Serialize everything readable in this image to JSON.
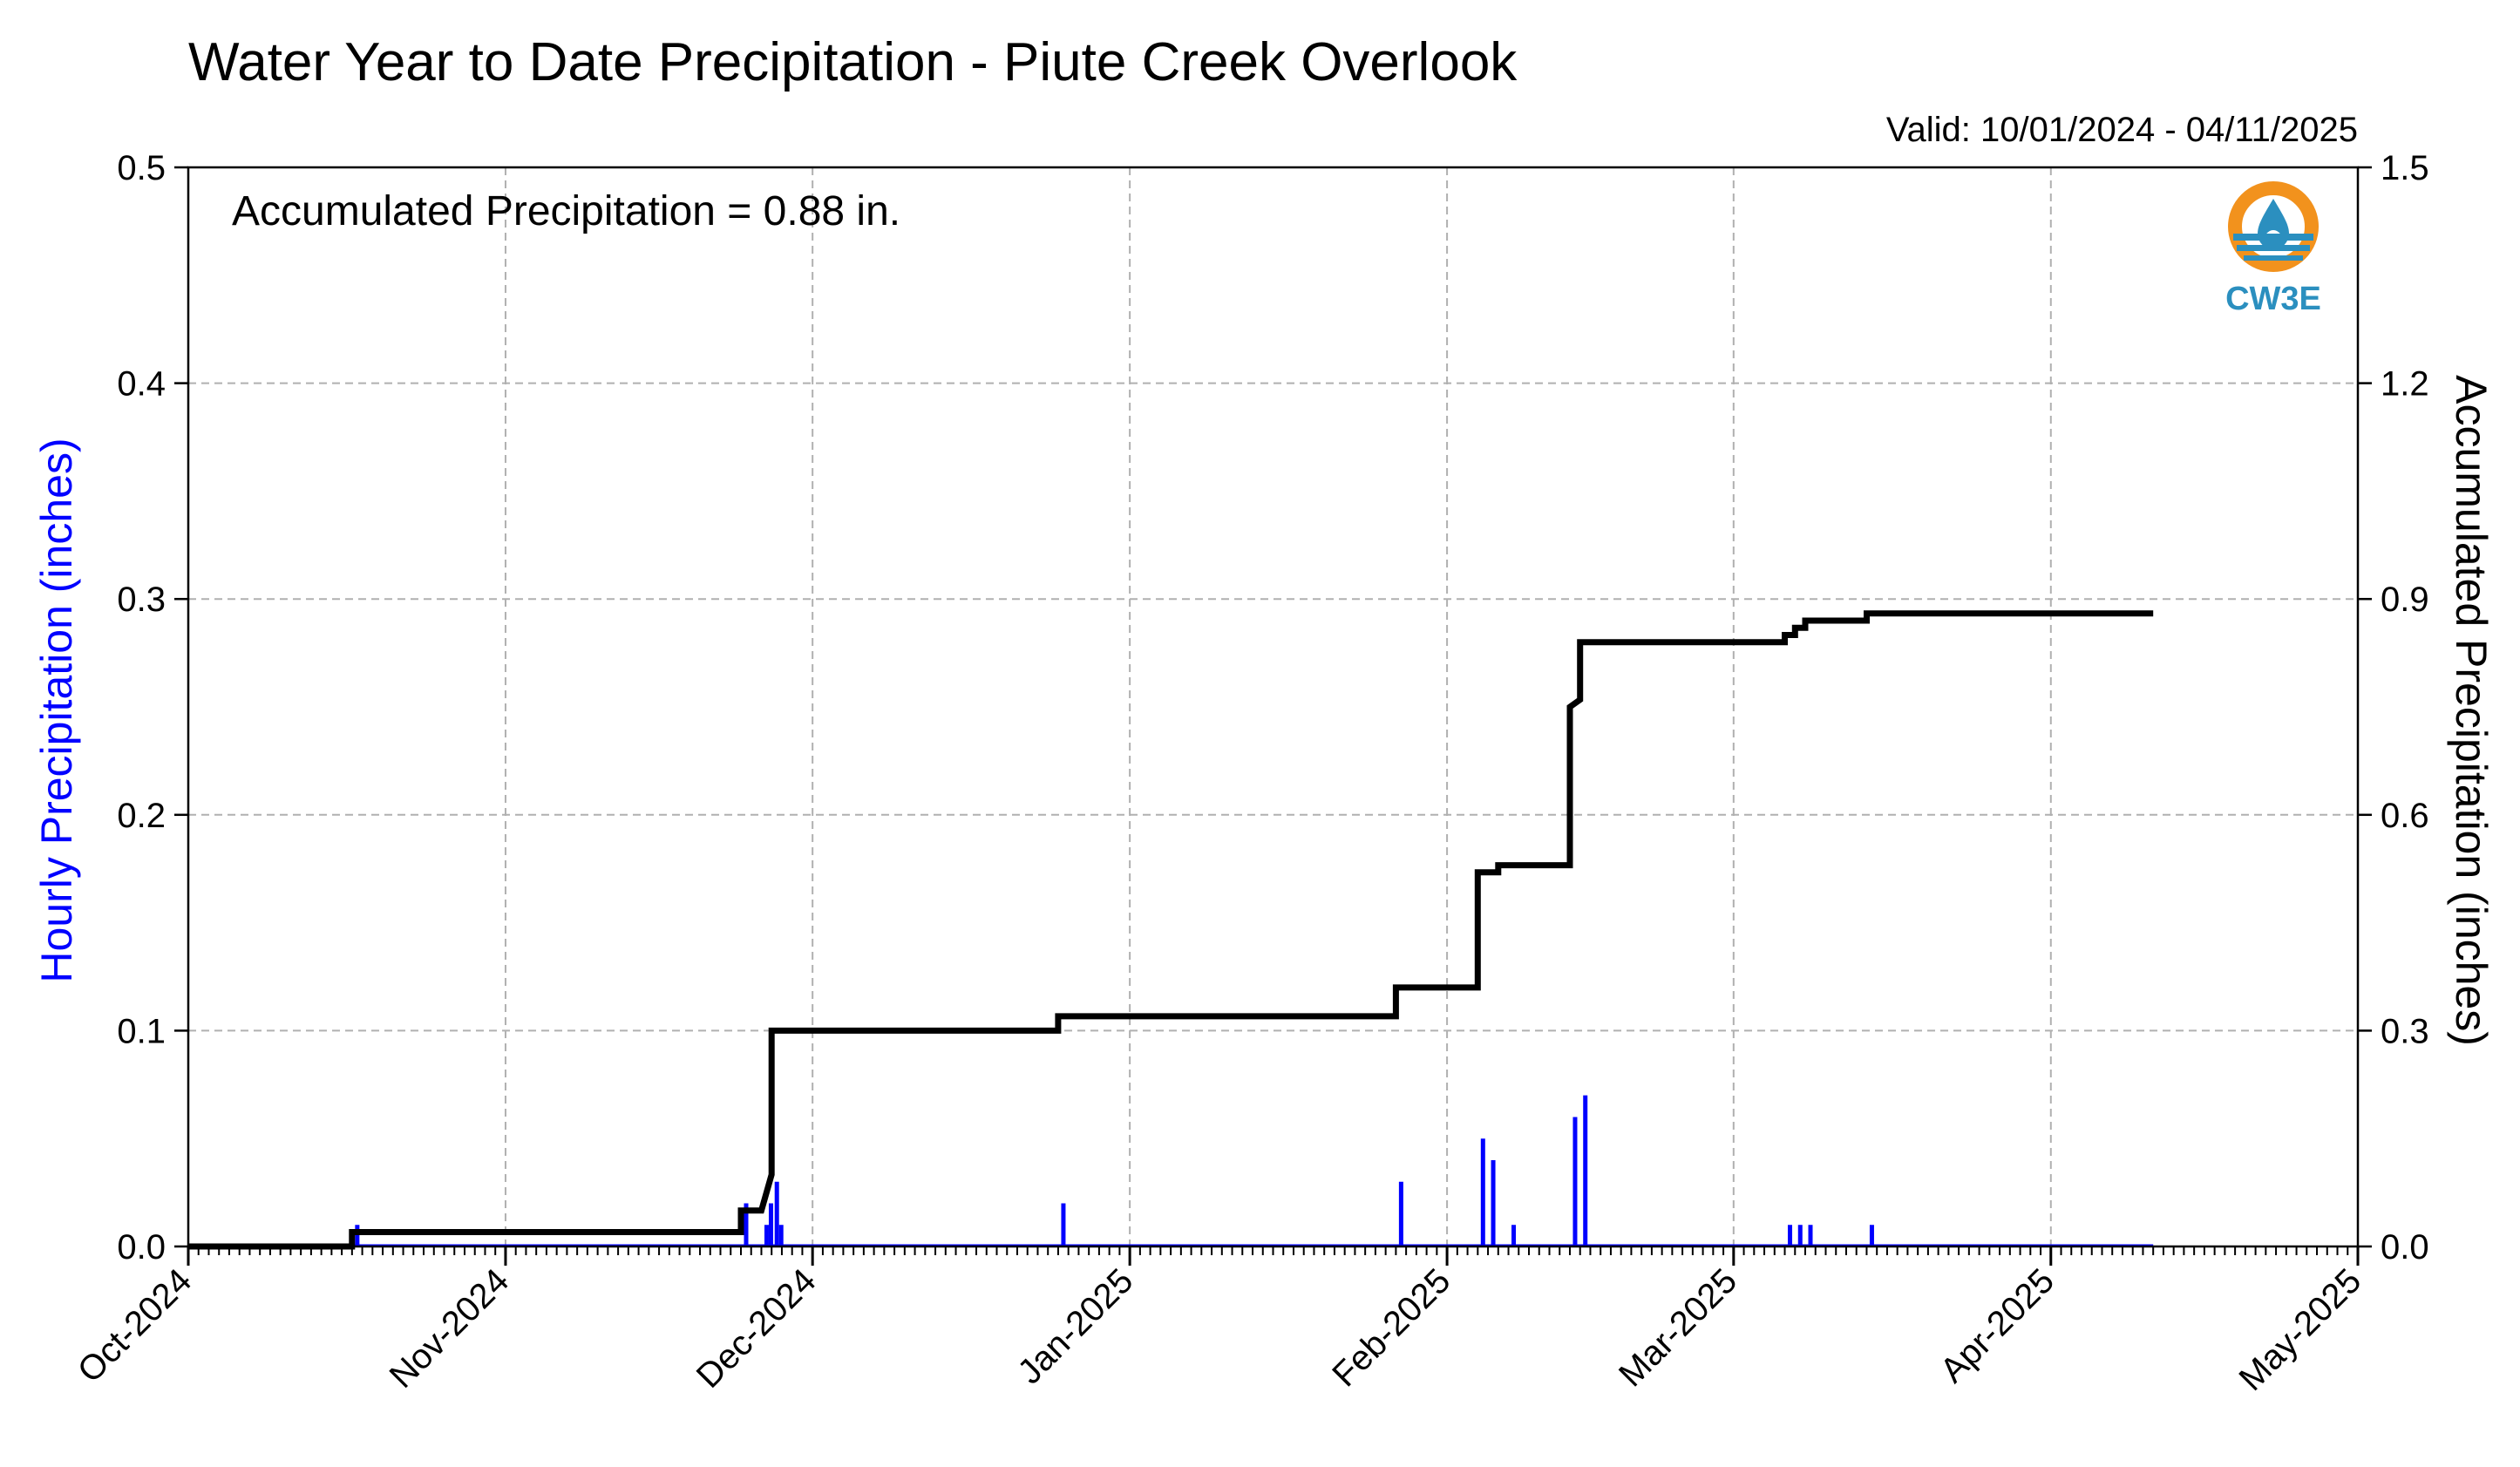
{
  "chart_data": {
    "type": "bar+line",
    "title": "Water Year to Date Precipitation - Piute Creek Overlook",
    "subtitle": "Valid: 10/01/2024 - 04/11/2025",
    "annotation": "Accumulated Precipitation = 0.88 in.",
    "ylabel_left": "Hourly Precipitation (inches)",
    "ylabel_right": "Accumulated Precipitation (inches)",
    "left_label_color": "#0000ff",
    "bar_color": "#0000ff",
    "line_color": "#000000",
    "grid": true,
    "xlim": [
      "2024-10-01",
      "2025-05-01"
    ],
    "ylim_left": [
      0,
      0.5
    ],
    "ylim_right": [
      0,
      1.5
    ],
    "x_tick_labels": [
      "Oct-2024",
      "Nov-2024",
      "Dec-2024",
      "Jan-2025",
      "Feb-2025",
      "Mar-2025",
      "Apr-2025",
      "May-2025"
    ],
    "x_tick_dates": [
      "2024-10-01",
      "2024-11-01",
      "2024-12-01",
      "2025-01-01",
      "2025-02-01",
      "2025-03-01",
      "2025-04-01",
      "2025-05-01"
    ],
    "y_ticks_left": [
      "0.0",
      "0.1",
      "0.2",
      "0.3",
      "0.4",
      "0.5"
    ],
    "y_ticks_right": [
      "0.0",
      "0.3",
      "0.6",
      "0.9",
      "1.2",
      "1.5"
    ],
    "hourly_series": {
      "name": "Hourly Precipitation",
      "points": [
        {
          "x": "2024-10-17",
          "y": 0.01
        },
        {
          "x": "2024-11-24",
          "y": 0.02
        },
        {
          "x": "2024-11-26",
          "y": 0.01
        },
        {
          "x": "2024-11-26",
          "y": 0.02
        },
        {
          "x": "2024-11-27",
          "y": 0.03
        },
        {
          "x": "2024-11-27",
          "y": 0.01
        },
        {
          "x": "2024-12-25",
          "y": 0.02
        },
        {
          "x": "2025-01-27",
          "y": 0.03
        },
        {
          "x": "2025-02-04",
          "y": 0.05
        },
        {
          "x": "2025-02-05",
          "y": 0.04
        },
        {
          "x": "2025-02-07",
          "y": 0.01
        },
        {
          "x": "2025-02-13",
          "y": 0.06
        },
        {
          "x": "2025-02-14",
          "y": 0.07
        },
        {
          "x": "2025-03-06",
          "y": 0.01
        },
        {
          "x": "2025-03-07",
          "y": 0.01
        },
        {
          "x": "2025-03-08",
          "y": 0.01
        },
        {
          "x": "2025-03-14",
          "y": 0.01
        }
      ]
    },
    "accumulated_series": {
      "name": "Accumulated Precipitation",
      "points": [
        {
          "x": "2024-10-01",
          "y": 0.0
        },
        {
          "x": "2024-10-17",
          "y": 0.0
        },
        {
          "x": "2024-10-17",
          "y": 0.02
        },
        {
          "x": "2024-11-24",
          "y": 0.02
        },
        {
          "x": "2024-11-24",
          "y": 0.05
        },
        {
          "x": "2024-11-26",
          "y": 0.05
        },
        {
          "x": "2024-11-27",
          "y": 0.1
        },
        {
          "x": "2024-11-27",
          "y": 0.3
        },
        {
          "x": "2024-12-25",
          "y": 0.3
        },
        {
          "x": "2024-12-25",
          "y": 0.32
        },
        {
          "x": "2025-01-27",
          "y": 0.32
        },
        {
          "x": "2025-01-27",
          "y": 0.36
        },
        {
          "x": "2025-02-04",
          "y": 0.36
        },
        {
          "x": "2025-02-04",
          "y": 0.52
        },
        {
          "x": "2025-02-06",
          "y": 0.52
        },
        {
          "x": "2025-02-06",
          "y": 0.53
        },
        {
          "x": "2025-02-13",
          "y": 0.53
        },
        {
          "x": "2025-02-13",
          "y": 0.75
        },
        {
          "x": "2025-02-14",
          "y": 0.76
        },
        {
          "x": "2025-02-14",
          "y": 0.84
        },
        {
          "x": "2025-03-06",
          "y": 0.84
        },
        {
          "x": "2025-03-06",
          "y": 0.85
        },
        {
          "x": "2025-03-07",
          "y": 0.85
        },
        {
          "x": "2025-03-07",
          "y": 0.86
        },
        {
          "x": "2025-03-08",
          "y": 0.86
        },
        {
          "x": "2025-03-08",
          "y": 0.87
        },
        {
          "x": "2025-03-14",
          "y": 0.87
        },
        {
          "x": "2025-03-14",
          "y": 0.88
        },
        {
          "x": "2025-04-11",
          "y": 0.88
        }
      ]
    }
  },
  "logo": {
    "text": "CW3E",
    "icon": "cw3e-water-drop-logo",
    "colors": {
      "ring": "#f2921d",
      "waves": "#2b8fbf",
      "text": "#2b8fbf"
    }
  }
}
